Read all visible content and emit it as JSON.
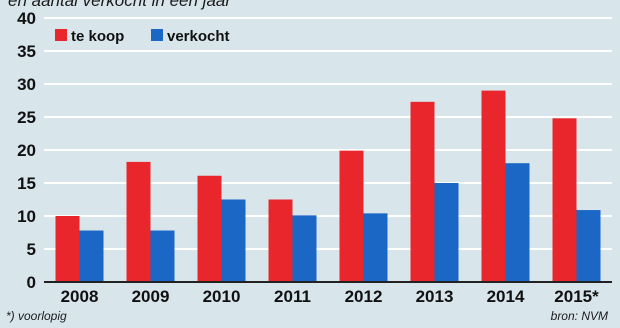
{
  "subtitle": "en aantal verkocht in een jaar",
  "footnote": "*) voorlopig",
  "source": "bron: NVM",
  "colors": {
    "background": "#d8e6ec",
    "grid": "#ffffff",
    "te_koop": "#e8262b",
    "verkocht": "#1a67c5"
  },
  "chart_data": {
    "type": "bar",
    "categories": [
      "2008",
      "2009",
      "2010",
      "2011",
      "2012",
      "2013",
      "2014",
      "2015*"
    ],
    "series": [
      {
        "name": "te koop",
        "values": [
          10,
          18.2,
          16.1,
          12.5,
          19.9,
          27.3,
          29,
          24.8
        ]
      },
      {
        "name": "verkocht",
        "values": [
          7.8,
          7.8,
          12.5,
          10.1,
          10.4,
          15,
          18,
          10.9
        ]
      }
    ],
    "title": "",
    "xlabel": "",
    "ylabel": "",
    "ylim": [
      0,
      40
    ],
    "yticks": [
      "0",
      "5",
      "10",
      "15",
      "20",
      "25",
      "30",
      "35",
      "40"
    ],
    "grid": true,
    "legend": "top-left"
  }
}
